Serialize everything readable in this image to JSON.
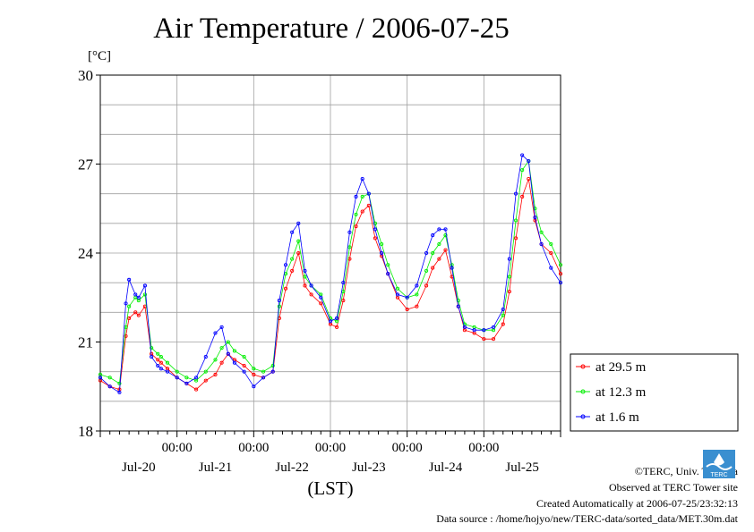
{
  "title": "Air Temperature / 2006-07-25",
  "unit_label": "[°C]",
  "footer": {
    "copyright": "©TERC, Univ. Tsukuba",
    "site": "Observed at TERC Tower site",
    "created": "Created Automatically at 2006-07-25/23:32:13",
    "source": "Data source : /home/hojyo/new/TERC-data/sorted_data/MET.30m.dat",
    "logo_text": "TERC"
  },
  "colors": {
    "s1": "#ff0000",
    "s2": "#00ee00",
    "s3": "#0000ff",
    "grid": "#a0a0a0"
  },
  "chart_data": {
    "type": "line",
    "xlabel": "(LST)",
    "ylabel": "[°C]",
    "ylim": [
      18,
      30
    ],
    "yticks": [
      18,
      21,
      24,
      27,
      30
    ],
    "xlim": [
      0,
      6
    ],
    "x_unit": "days since 2006-07-20 00:00 LST",
    "x_time_ticks": [
      {
        "x": 1,
        "label": "00:00"
      },
      {
        "x": 2,
        "label": "00:00"
      },
      {
        "x": 3,
        "label": "00:00"
      },
      {
        "x": 4,
        "label": "00:00"
      },
      {
        "x": 5,
        "label": "00:00"
      }
    ],
    "x_date_ticks": [
      {
        "x": 0.5,
        "label": "Jul-20"
      },
      {
        "x": 1.5,
        "label": "Jul-21"
      },
      {
        "x": 2.5,
        "label": "Jul-22"
      },
      {
        "x": 3.5,
        "label": "Jul-23"
      },
      {
        "x": 4.5,
        "label": "Jul-24"
      },
      {
        "x": 5.5,
        "label": "Jul-25"
      }
    ],
    "grid": true,
    "legend_position": "right, bottom",
    "x": [
      0.0,
      0.125,
      0.25,
      0.333,
      0.375,
      0.458,
      0.5,
      0.583,
      0.667,
      0.75,
      0.792,
      0.875,
      1.0,
      1.125,
      1.25,
      1.375,
      1.5,
      1.583,
      1.667,
      1.75,
      1.875,
      2.0,
      2.125,
      2.25,
      2.333,
      2.417,
      2.5,
      2.583,
      2.667,
      2.75,
      2.875,
      3.0,
      3.083,
      3.167,
      3.25,
      3.333,
      3.417,
      3.5,
      3.583,
      3.667,
      3.75,
      3.875,
      4.0,
      4.125,
      4.25,
      4.333,
      4.417,
      4.5,
      4.583,
      4.667,
      4.75,
      4.875,
      5.0,
      5.125,
      5.25,
      5.333,
      5.417,
      5.5,
      5.583,
      5.667,
      5.75,
      5.875,
      6.0
    ],
    "series": [
      {
        "name": "at 29.5 m",
        "color": "#ff0000",
        "marker": "circle",
        "values": [
          19.7,
          19.5,
          19.4,
          21.2,
          21.8,
          22.0,
          21.9,
          22.2,
          20.6,
          20.4,
          20.3,
          20.1,
          19.8,
          19.6,
          19.4,
          19.7,
          19.9,
          20.3,
          20.6,
          20.4,
          20.2,
          19.9,
          19.8,
          20.0,
          21.8,
          22.8,
          23.4,
          24.0,
          22.9,
          22.6,
          22.3,
          21.6,
          21.5,
          22.4,
          23.8,
          24.9,
          25.4,
          25.6,
          24.5,
          23.9,
          23.3,
          22.5,
          22.1,
          22.2,
          22.9,
          23.5,
          23.8,
          24.1,
          23.2,
          22.2,
          21.4,
          21.3,
          21.1,
          21.1,
          21.6,
          22.7,
          24.5,
          25.9,
          26.5,
          25.1,
          24.3,
          24.0,
          23.3
        ]
      },
      {
        "name": "at 12.3 m",
        "color": "#00ee00",
        "marker": "circle",
        "values": [
          19.9,
          19.8,
          19.6,
          21.5,
          22.2,
          22.5,
          22.4,
          22.6,
          20.8,
          20.6,
          20.5,
          20.3,
          20.0,
          19.8,
          19.7,
          20.0,
          20.4,
          20.8,
          21.0,
          20.7,
          20.5,
          20.1,
          20.0,
          20.2,
          22.2,
          23.3,
          23.8,
          24.4,
          23.2,
          22.9,
          22.6,
          21.8,
          21.7,
          22.7,
          24.2,
          25.3,
          25.9,
          26.0,
          25.0,
          24.3,
          23.6,
          22.8,
          22.5,
          22.6,
          23.4,
          24.0,
          24.3,
          24.6,
          23.6,
          22.4,
          21.6,
          21.5,
          21.4,
          21.4,
          21.9,
          23.2,
          25.1,
          26.8,
          27.1,
          25.5,
          24.7,
          24.3,
          23.6
        ]
      },
      {
        "name": "at 1.6 m",
        "color": "#0000ff",
        "marker": "circle",
        "values": [
          19.8,
          19.5,
          19.3,
          22.3,
          23.1,
          22.6,
          22.5,
          22.9,
          20.5,
          20.2,
          20.1,
          20.0,
          19.8,
          19.6,
          19.8,
          20.5,
          21.3,
          21.5,
          20.6,
          20.3,
          20.0,
          19.5,
          19.8,
          20.0,
          22.4,
          23.6,
          24.7,
          25.0,
          23.4,
          22.9,
          22.5,
          21.7,
          21.8,
          23.0,
          24.7,
          25.9,
          26.5,
          26.0,
          24.8,
          24.0,
          23.3,
          22.6,
          22.5,
          22.9,
          24.0,
          24.6,
          24.8,
          24.8,
          23.5,
          22.2,
          21.5,
          21.4,
          21.4,
          21.5,
          22.1,
          23.8,
          26.0,
          27.3,
          27.1,
          25.2,
          24.3,
          23.5,
          23.0
        ]
      }
    ]
  }
}
